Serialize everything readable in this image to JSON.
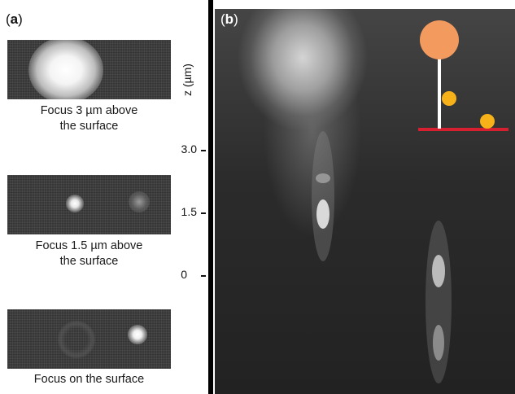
{
  "panel_a": {
    "label_open": "(",
    "label_letter": "a",
    "label_close": ")",
    "captions": [
      {
        "line1": "Focus 3 µm above",
        "line2": "the surface"
      },
      {
        "line1": "Focus 1.5 µm above",
        "line2": "the surface"
      },
      {
        "line1": "Focus on the surface",
        "line2": ""
      }
    ]
  },
  "panel_b": {
    "label_open": "(",
    "label_letter": "b",
    "label_close": ")",
    "axis_title": "z (µm)",
    "ticks": [
      "3.0",
      "1.5",
      "0"
    ]
  },
  "colors": {
    "surface_line": "#d6202f",
    "bead_large": "#f39a5e",
    "particles": "#f7b21a",
    "stick": "#ffffff",
    "micrograph_bg": "#2e2e2e"
  }
}
